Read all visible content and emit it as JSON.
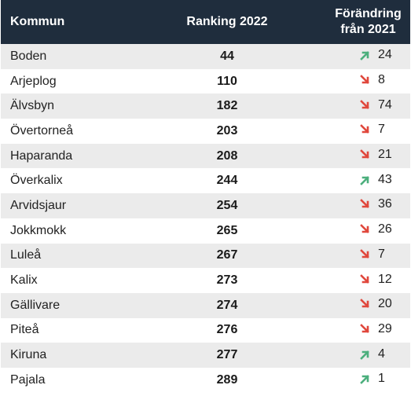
{
  "header": {
    "kommun": "Kommun",
    "ranking": "Ranking 2022",
    "change_line1": "Förändring",
    "change_line2": "från 2021"
  },
  "colors": {
    "up": "#4caf7d",
    "down": "#e0473c",
    "header_bg": "#1f2d3d",
    "stripe": "#ebebeb"
  },
  "rows": [
    {
      "name": "Boden",
      "rank": "44",
      "dir": "up",
      "change": "24"
    },
    {
      "name": "Arjeplog",
      "rank": "110",
      "dir": "down",
      "change": "8"
    },
    {
      "name": "Älvsbyn",
      "rank": "182",
      "dir": "down",
      "change": "74"
    },
    {
      "name": "Övertorneå",
      "rank": "203",
      "dir": "down",
      "change": "7"
    },
    {
      "name": "Haparanda",
      "rank": "208",
      "dir": "down",
      "change": "21"
    },
    {
      "name": "Överkalix",
      "rank": "244",
      "dir": "up",
      "change": "43"
    },
    {
      "name": "Arvidsjaur",
      "rank": "254",
      "dir": "down",
      "change": "36"
    },
    {
      "name": "Jokkmokk",
      "rank": "265",
      "dir": "down",
      "change": "26"
    },
    {
      "name": "Luleå",
      "rank": "267",
      "dir": "down",
      "change": "7"
    },
    {
      "name": "Kalix",
      "rank": "273",
      "dir": "down",
      "change": "12"
    },
    {
      "name": "Gällivare",
      "rank": "274",
      "dir": "down",
      "change": "20"
    },
    {
      "name": "Piteå",
      "rank": "276",
      "dir": "down",
      "change": "29"
    },
    {
      "name": "Kiruna",
      "rank": "277",
      "dir": "up",
      "change": "4"
    },
    {
      "name": "Pajala",
      "rank": "289",
      "dir": "up",
      "change": "1"
    }
  ]
}
